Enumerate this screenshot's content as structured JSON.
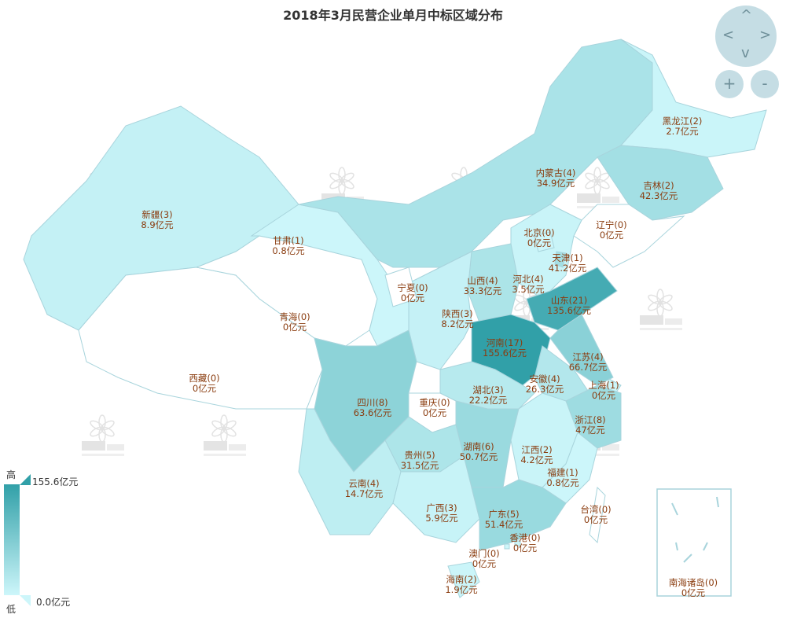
{
  "title": "2018年3月民营企业单月中标区域分布",
  "unit": "亿元",
  "watermark": {
    "logo": "BRIdata",
    "sub": "明树数据"
  },
  "colors": {
    "low": "#cdf6fa",
    "high": "#31a0a8",
    "empty": "#ffffff",
    "border": "#a8d4dc",
    "label": "#8a3c0f"
  },
  "legend": {
    "high_label": "高",
    "low_label": "低",
    "max": "155.6亿元",
    "min": "0.0亿元",
    "max_value": 155.6,
    "min_value": 0
  },
  "nav": {
    "up": "^",
    "down": "v",
    "left": "<",
    "right": ">",
    "zoom_in": "+",
    "zoom_out": "-"
  },
  "regions": [
    {
      "name": "新疆",
      "count": 3,
      "amount": 8.9
    },
    {
      "name": "西藏",
      "count": 0,
      "amount": 0
    },
    {
      "name": "青海",
      "count": 0,
      "amount": 0
    },
    {
      "name": "甘肃",
      "count": 1,
      "amount": 0.8
    },
    {
      "name": "内蒙古",
      "count": 4,
      "amount": 34.9
    },
    {
      "name": "黑龙江",
      "count": 2,
      "amount": 2.7
    },
    {
      "name": "吉林",
      "count": 2,
      "amount": 42.3
    },
    {
      "name": "辽宁",
      "count": 0,
      "amount": 0
    },
    {
      "name": "河北",
      "count": 4,
      "amount": 3.5
    },
    {
      "name": "北京",
      "count": 0,
      "amount": 0
    },
    {
      "name": "天津",
      "count": 1,
      "amount": 41.2
    },
    {
      "name": "山西",
      "count": 4,
      "amount": 33.3
    },
    {
      "name": "陕西",
      "count": 3,
      "amount": 8.2
    },
    {
      "name": "宁夏",
      "count": 0,
      "amount": 0
    },
    {
      "name": "山东",
      "count": 21,
      "amount": 135.6
    },
    {
      "name": "河南",
      "count": 17,
      "amount": 155.6
    },
    {
      "name": "江苏",
      "count": 4,
      "amount": 66.7
    },
    {
      "name": "安徽",
      "count": 4,
      "amount": 26.3
    },
    {
      "name": "上海",
      "count": 1,
      "amount": 0
    },
    {
      "name": "浙江",
      "count": 8,
      "amount": 47
    },
    {
      "name": "湖北",
      "count": 3,
      "amount": 22.2
    },
    {
      "name": "重庆",
      "count": 0,
      "amount": 0
    },
    {
      "name": "四川",
      "count": 8,
      "amount": 63.6
    },
    {
      "name": "贵州",
      "count": 5,
      "amount": 31.5
    },
    {
      "name": "云南",
      "count": 4,
      "amount": 14.7
    },
    {
      "name": "湖南",
      "count": 6,
      "amount": 50.7
    },
    {
      "name": "江西",
      "count": 2,
      "amount": 4.2
    },
    {
      "name": "福建",
      "count": 1,
      "amount": 0.8
    },
    {
      "name": "广西",
      "count": 3,
      "amount": 5.9
    },
    {
      "name": "广东",
      "count": 5,
      "amount": 51.4
    },
    {
      "name": "海南",
      "count": 2,
      "amount": 1.9
    },
    {
      "name": "台湾",
      "count": 0,
      "amount": 0
    },
    {
      "name": "香港",
      "count": 0,
      "amount": 0
    },
    {
      "name": "澳门",
      "count": 0,
      "amount": 0
    },
    {
      "name": "南海诸岛",
      "count": 0,
      "amount": 0
    }
  ]
}
